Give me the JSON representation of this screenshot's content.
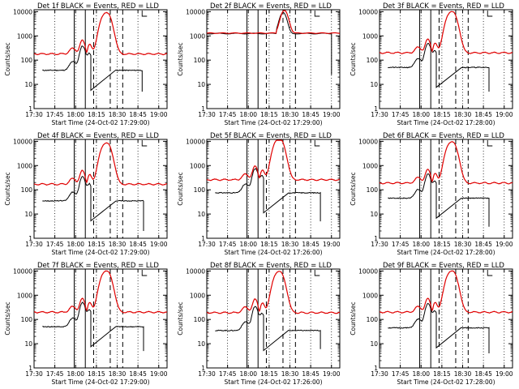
{
  "window": {
    "title": ""
  },
  "colors": {
    "events": "#000000",
    "lld": "#e00000",
    "background": "#ffffff"
  },
  "chart_data": [
    {
      "type": "line",
      "title": "Det 1f BLACK = Events, RED = LLD",
      "xlabel": "Start Time (24-Oct-02 17:29:00)",
      "ylabel": "Counts/sec",
      "yscale": "log",
      "ylim": [
        1,
        12000
      ],
      "xlim": [
        "17:30",
        "19:06"
      ],
      "xticks": [
        "17:30",
        "17:45",
        "18:00",
        "18:15",
        "18:30",
        "18:45",
        "19:00"
      ],
      "yticks": [
        "1",
        "10",
        "100",
        "1000",
        "10000"
      ],
      "profile": "A",
      "lld_baseline": 180,
      "events_baseline": 38,
      "events_end": "18:48",
      "events_drop_to": 5
    },
    {
      "type": "line",
      "title": "Det 2f BLACK = Events, RED = LLD",
      "xlabel": "Start Time (24-Oct-02 17:29:00)",
      "ylabel": "Counts/sec",
      "yscale": "log",
      "ylim": [
        1,
        12000
      ],
      "xlim": [
        "17:30",
        "19:06"
      ],
      "xticks": [
        "17:30",
        "17:45",
        "18:00",
        "18:15",
        "18:30",
        "18:45",
        "19:00"
      ],
      "yticks": [
        "1",
        "10",
        "100",
        "1000",
        "10000"
      ],
      "profile": "B",
      "lld_baseline": 1300,
      "events_baseline": 1250,
      "events_end": "19:00",
      "events_drop_to": 25
    },
    {
      "type": "line",
      "title": "Det 3f BLACK = Events, RED = LLD",
      "xlabel": "Start Time (24-Oct-02 17:28:00)",
      "ylabel": "Counts/sec",
      "yscale": "log",
      "ylim": [
        1,
        12000
      ],
      "xlim": [
        "17:30",
        "19:06"
      ],
      "xticks": [
        "17:30",
        "17:45",
        "18:00",
        "18:15",
        "18:30",
        "18:45",
        "19:00"
      ],
      "yticks": [
        "1",
        "10",
        "100",
        "1000",
        "10000"
      ],
      "profile": "A",
      "lld_baseline": 200,
      "events_baseline": 50,
      "events_end": "18:49",
      "events_drop_to": 5
    },
    {
      "type": "line",
      "title": "Det 4f BLACK = Events, RED = LLD",
      "xlabel": "Start Time (24-Oct-02 17:29:00)",
      "ylabel": "Counts/sec",
      "yscale": "log",
      "ylim": [
        1,
        12000
      ],
      "xlim": [
        "17:30",
        "19:06"
      ],
      "xticks": [
        "17:30",
        "17:45",
        "18:00",
        "18:15",
        "18:30",
        "18:45",
        "19:00"
      ],
      "yticks": [
        "1",
        "10",
        "100",
        "1000",
        "10000"
      ],
      "profile": "A",
      "lld_baseline": 170,
      "events_baseline": 35,
      "events_end": "18:49",
      "events_drop_to": 2
    },
    {
      "type": "line",
      "title": "Det 5f BLACK = Events, RED = LLD",
      "xlabel": "Start Time (24-Oct-02 17:26:00)",
      "ylabel": "Counts/sec",
      "yscale": "log",
      "ylim": [
        1,
        12000
      ],
      "xlim": [
        "17:30",
        "19:06"
      ],
      "xticks": [
        "17:30",
        "17:45",
        "18:00",
        "18:15",
        "18:30",
        "18:45",
        "19:00"
      ],
      "yticks": [
        "1",
        "10",
        "100",
        "1000",
        "10000"
      ],
      "profile": "A",
      "lld_baseline": 260,
      "events_baseline": 75,
      "events_end": "18:52",
      "events_drop_to": 5
    },
    {
      "type": "line",
      "title": "Det 6f BLACK = Events, RED = LLD",
      "xlabel": "Start Time (24-Oct-02 17:28:00)",
      "ylabel": "Counts/sec",
      "yscale": "log",
      "ylim": [
        1,
        12000
      ],
      "xlim": [
        "17:30",
        "19:06"
      ],
      "xticks": [
        "17:30",
        "17:45",
        "18:00",
        "18:15",
        "18:30",
        "18:45",
        "19:00"
      ],
      "yticks": [
        "1",
        "10",
        "100",
        "1000",
        "10000"
      ],
      "profile": "A",
      "lld_baseline": 190,
      "events_baseline": 45,
      "events_end": "18:49",
      "events_drop_to": 3
    },
    {
      "type": "line",
      "title": "Det 7f BLACK = Events, RED = LLD",
      "xlabel": "Start Time (24-Oct-02 17:29:00)",
      "ylabel": "Counts/sec",
      "yscale": "log",
      "ylim": [
        1,
        12000
      ],
      "xlim": [
        "17:30",
        "19:06"
      ],
      "xticks": [
        "17:30",
        "17:45",
        "18:00",
        "18:15",
        "18:30",
        "18:45",
        "19:00"
      ],
      "yticks": [
        "1",
        "10",
        "100",
        "1000",
        "10000"
      ],
      "profile": "A",
      "lld_baseline": 200,
      "events_baseline": 50,
      "events_end": "18:49",
      "events_drop_to": 5
    },
    {
      "type": "line",
      "title": "Det 8f BLACK = Events, RED = LLD",
      "xlabel": "Start Time (24-Oct-02 17:26:00)",
      "ylabel": "Counts/sec",
      "yscale": "log",
      "ylim": [
        1,
        12000
      ],
      "xlim": [
        "17:30",
        "19:06"
      ],
      "xticks": [
        "17:30",
        "17:45",
        "18:00",
        "18:15",
        "18:30",
        "18:45",
        "19:00"
      ],
      "yticks": [
        "1",
        "10",
        "100",
        "1000",
        "10000"
      ],
      "profile": "A",
      "lld_baseline": 190,
      "events_baseline": 35,
      "events_end": "18:52",
      "events_drop_to": 6
    },
    {
      "type": "line",
      "title": "Det 9f BLACK = Events, RED = LLD",
      "xlabel": "Start Time (24-Oct-02 17:28:00)",
      "ylabel": "Counts/sec",
      "yscale": "log",
      "ylim": [
        1,
        12000
      ],
      "xlim": [
        "17:30",
        "19:06"
      ],
      "xticks": [
        "17:30",
        "17:45",
        "18:00",
        "18:15",
        "18:30",
        "18:45",
        "19:00"
      ],
      "yticks": [
        "1",
        "10",
        "100",
        "1000",
        "10000"
      ],
      "profile": "A",
      "lld_baseline": 200,
      "events_baseline": 45,
      "events_end": "18:49",
      "events_drop_to": 4
    }
  ]
}
